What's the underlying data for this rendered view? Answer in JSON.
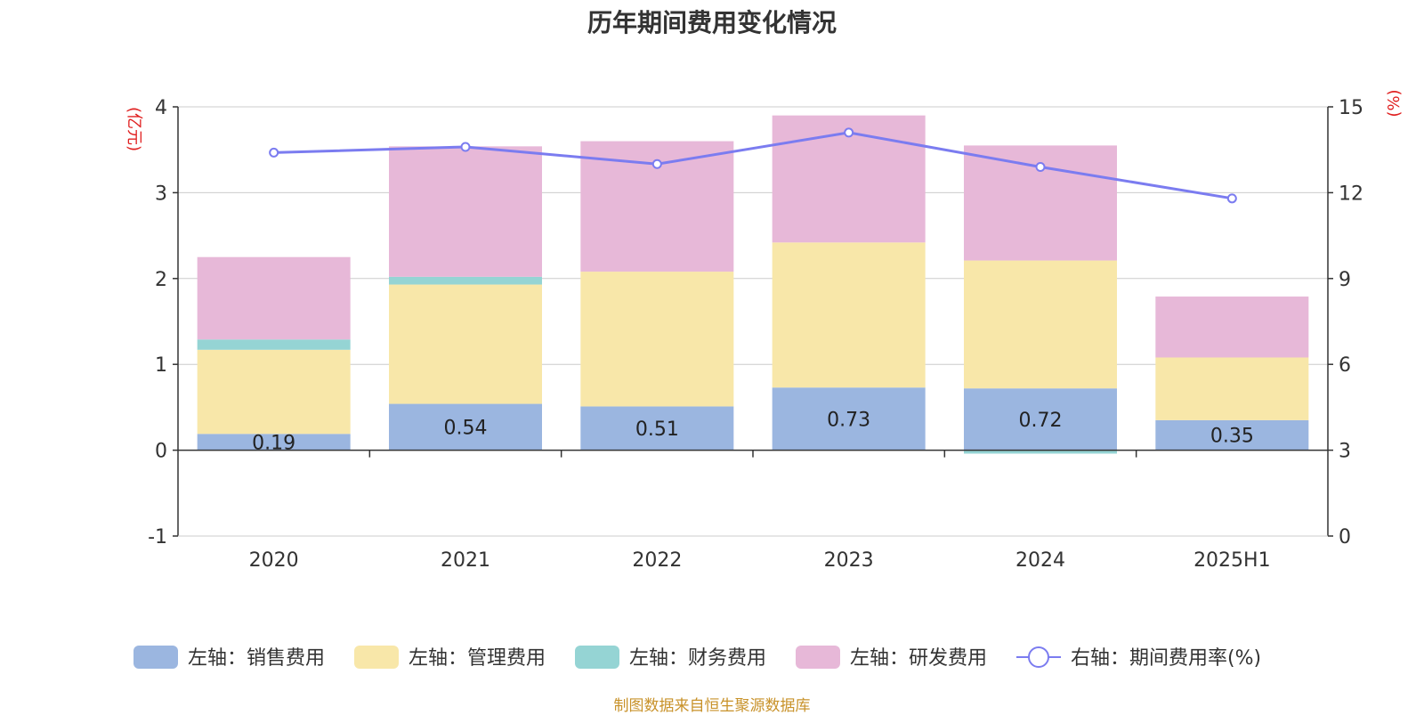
{
  "chart_data": {
    "type": "bar",
    "title": "历年期间费用变化情况",
    "left_axis_unit": "(亿元)",
    "right_axis_unit": "(%)",
    "categories": [
      "2020",
      "2021",
      "2022",
      "2023",
      "2024",
      "2025H1"
    ],
    "left_ylim": [
      -1,
      4
    ],
    "left_yticks": [
      "-1",
      "0",
      "1",
      "2",
      "3",
      "4"
    ],
    "right_ylim": [
      0,
      15
    ],
    "right_yticks": [
      "0",
      "3",
      "6",
      "9",
      "12",
      "15"
    ],
    "grid": true,
    "legend_position": "bottom",
    "series": [
      {
        "name": "左轴：销售费用",
        "color": "#9bb6e0",
        "values": [
          0.19,
          0.54,
          0.51,
          0.73,
          0.72,
          0.35
        ],
        "labels": [
          "0.19",
          "0.54",
          "0.51",
          "0.73",
          "0.72",
          "0.35"
        ]
      },
      {
        "name": "左轴：管理费用",
        "color": "#f8e7a9",
        "values": [
          0.98,
          1.39,
          1.57,
          1.69,
          1.49,
          0.73
        ]
      },
      {
        "name": "左轴：财务费用",
        "color": "#95d4d4",
        "values": [
          0.12,
          0.09,
          0.0,
          0.0,
          -0.04,
          0.0
        ]
      },
      {
        "name": "左轴：研发费用",
        "color": "#e7b8d8",
        "values": [
          0.96,
          1.52,
          1.52,
          1.48,
          1.34,
          0.71
        ]
      },
      {
        "name": "右轴：期间费用率(%)",
        "color": "#7b7cf0",
        "type": "line",
        "axis": "right",
        "values": [
          13.4,
          13.6,
          13.0,
          14.1,
          12.9,
          11.8
        ]
      }
    ]
  },
  "footer": "制图数据来自恒生聚源数据库"
}
